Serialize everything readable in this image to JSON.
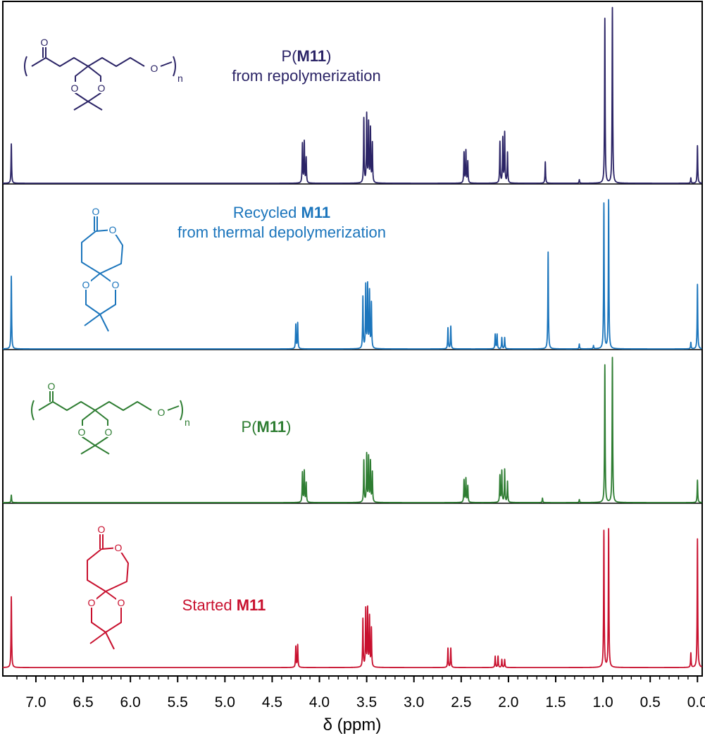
{
  "chart_data": {
    "type": "line",
    "xlabel": "δ (ppm)",
    "x_reversed": true,
    "xlim": [
      7.35,
      -0.05
    ],
    "x_ticks": [
      "7.0",
      "6.5",
      "6.0",
      "5.5",
      "5.0",
      "4.5",
      "4.0",
      "3.5",
      "3.0",
      "2.5",
      "2.0",
      "1.5",
      "1.0",
      "0.5",
      "0.0"
    ],
    "grid": false,
    "legend": "none",
    "series": [
      {
        "key": "repoly",
        "label_lines": [
          {
            "pre": "P(",
            "bold": "M11",
            "post": ")"
          },
          {
            "pre": "from repolymerization",
            "bold": "",
            "post": ""
          }
        ],
        "color": "#2b2466",
        "structure": "polymer",
        "peaks": [
          {
            "x": 7.26,
            "h": 0.22
          },
          {
            "x": 4.18,
            "h": 0.22
          },
          {
            "x": 4.16,
            "h": 0.23
          },
          {
            "x": 4.14,
            "h": 0.14
          },
          {
            "x": 3.53,
            "h": 0.36
          },
          {
            "x": 3.5,
            "h": 0.38
          },
          {
            "x": 3.48,
            "h": 0.33
          },
          {
            "x": 3.46,
            "h": 0.3
          },
          {
            "x": 3.44,
            "h": 0.22
          },
          {
            "x": 2.47,
            "h": 0.17
          },
          {
            "x": 2.45,
            "h": 0.18
          },
          {
            "x": 2.43,
            "h": 0.12
          },
          {
            "x": 2.09,
            "h": 0.23
          },
          {
            "x": 2.06,
            "h": 0.25
          },
          {
            "x": 2.04,
            "h": 0.28
          },
          {
            "x": 2.01,
            "h": 0.17
          },
          {
            "x": 1.61,
            "h": 0.12
          },
          {
            "x": 1.25,
            "h": 0.02
          },
          {
            "x": 0.98,
            "h": 0.92
          },
          {
            "x": 0.9,
            "h": 0.98
          },
          {
            "x": 0.07,
            "h": 0.03
          },
          {
            "x": 0.0,
            "h": 0.21
          }
        ]
      },
      {
        "key": "recycled",
        "label_lines": [
          {
            "pre": "Recycled ",
            "bold": "M11",
            "post": ""
          },
          {
            "pre": "from thermal depolymerization",
            "bold": "",
            "post": ""
          }
        ],
        "color": "#1b75bc",
        "structure": "monomer",
        "peaks": [
          {
            "x": 7.26,
            "h": 0.45
          },
          {
            "x": 4.25,
            "h": 0.15
          },
          {
            "x": 4.23,
            "h": 0.16
          },
          {
            "x": 3.54,
            "h": 0.32
          },
          {
            "x": 3.51,
            "h": 0.39
          },
          {
            "x": 3.49,
            "h": 0.39
          },
          {
            "x": 3.47,
            "h": 0.35
          },
          {
            "x": 3.45,
            "h": 0.28
          },
          {
            "x": 2.64,
            "h": 0.13
          },
          {
            "x": 2.61,
            "h": 0.14
          },
          {
            "x": 2.14,
            "h": 0.09
          },
          {
            "x": 2.12,
            "h": 0.09
          },
          {
            "x": 2.07,
            "h": 0.07
          },
          {
            "x": 2.04,
            "h": 0.07
          },
          {
            "x": 1.58,
            "h": 0.6
          },
          {
            "x": 1.25,
            "h": 0.03
          },
          {
            "x": 1.1,
            "h": 0.02
          },
          {
            "x": 0.99,
            "h": 0.9
          },
          {
            "x": 0.94,
            "h": 0.92
          },
          {
            "x": 0.07,
            "h": 0.04
          },
          {
            "x": 0.0,
            "h": 0.4
          }
        ]
      },
      {
        "key": "polymer",
        "label_lines": [
          {
            "pre": "P(",
            "bold": "M11",
            "post": ")"
          }
        ],
        "color": "#2e7d32",
        "structure": "polymer",
        "peaks": [
          {
            "x": 7.26,
            "h": 0.05
          },
          {
            "x": 4.18,
            "h": 0.2
          },
          {
            "x": 4.16,
            "h": 0.21
          },
          {
            "x": 4.14,
            "h": 0.13
          },
          {
            "x": 3.53,
            "h": 0.28
          },
          {
            "x": 3.5,
            "h": 0.32
          },
          {
            "x": 3.48,
            "h": 0.3
          },
          {
            "x": 3.46,
            "h": 0.27
          },
          {
            "x": 3.44,
            "h": 0.2
          },
          {
            "x": 2.47,
            "h": 0.15
          },
          {
            "x": 2.45,
            "h": 0.16
          },
          {
            "x": 2.43,
            "h": 0.11
          },
          {
            "x": 2.09,
            "h": 0.18
          },
          {
            "x": 2.07,
            "h": 0.21
          },
          {
            "x": 2.04,
            "h": 0.22
          },
          {
            "x": 2.01,
            "h": 0.14
          },
          {
            "x": 1.64,
            "h": 0.03
          },
          {
            "x": 1.25,
            "h": 0.02
          },
          {
            "x": 0.98,
            "h": 0.92
          },
          {
            "x": 0.9,
            "h": 0.97
          },
          {
            "x": 0.0,
            "h": 0.15
          }
        ]
      },
      {
        "key": "started",
        "label_lines": [
          {
            "pre": "Started ",
            "bold": "M11",
            "post": ""
          }
        ],
        "color": "#c8102e",
        "structure": "monomer",
        "peaks": [
          {
            "x": 7.26,
            "h": 0.44
          },
          {
            "x": 4.25,
            "h": 0.13
          },
          {
            "x": 4.23,
            "h": 0.14
          },
          {
            "x": 3.54,
            "h": 0.3
          },
          {
            "x": 3.51,
            "h": 0.36
          },
          {
            "x": 3.49,
            "h": 0.36
          },
          {
            "x": 3.47,
            "h": 0.31
          },
          {
            "x": 3.45,
            "h": 0.24
          },
          {
            "x": 2.64,
            "h": 0.12
          },
          {
            "x": 2.61,
            "h": 0.12
          },
          {
            "x": 2.14,
            "h": 0.07
          },
          {
            "x": 2.11,
            "h": 0.07
          },
          {
            "x": 2.07,
            "h": 0.05
          },
          {
            "x": 2.04,
            "h": 0.05
          },
          {
            "x": 0.99,
            "h": 0.85
          },
          {
            "x": 0.94,
            "h": 0.86
          },
          {
            "x": 0.07,
            "h": 0.09
          },
          {
            "x": 0.0,
            "h": 0.8
          }
        ]
      }
    ]
  },
  "structure_text": {
    "oxygen": "O",
    "subscript_n": "n"
  }
}
